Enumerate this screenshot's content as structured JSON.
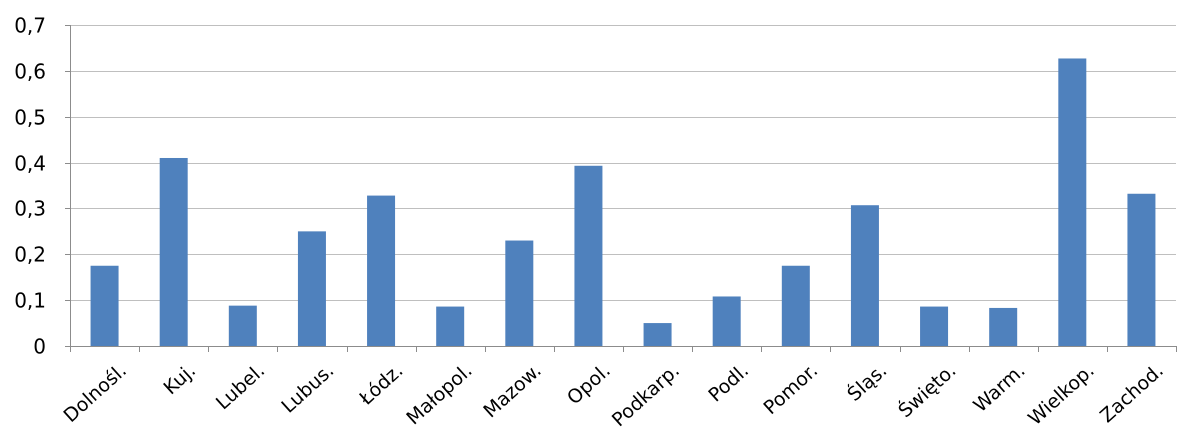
{
  "chart_data": {
    "type": "bar",
    "title": "",
    "xlabel": "",
    "ylabel": "",
    "categories": [
      "Dolnośl.",
      "Kuj.",
      "Lubel.",
      "Lubus.",
      "Łódz.",
      "Małopol.",
      "Mazow.",
      "Opol.",
      "Podkarp.",
      "Podl.",
      "Pomor.",
      "Śląs.",
      "Święto.",
      "Warm.",
      "Wielkop.",
      "Zachod."
    ],
    "values": [
      0.175,
      0.41,
      0.088,
      0.25,
      0.328,
      0.086,
      0.23,
      0.393,
      0.05,
      0.108,
      0.175,
      0.307,
      0.086,
      0.083,
      0.627,
      0.332
    ],
    "ylim": [
      0,
      0.7
    ],
    "yticks": [
      0,
      0.1,
      0.2,
      0.3,
      0.4,
      0.5,
      0.6,
      0.7
    ],
    "ytick_labels": [
      "0",
      "0,1",
      "0,2",
      "0,3",
      "0,4",
      "0,5",
      "0,6",
      "0,7"
    ],
    "grid": true,
    "legend": "none",
    "bar_color": "#4f81bd"
  }
}
